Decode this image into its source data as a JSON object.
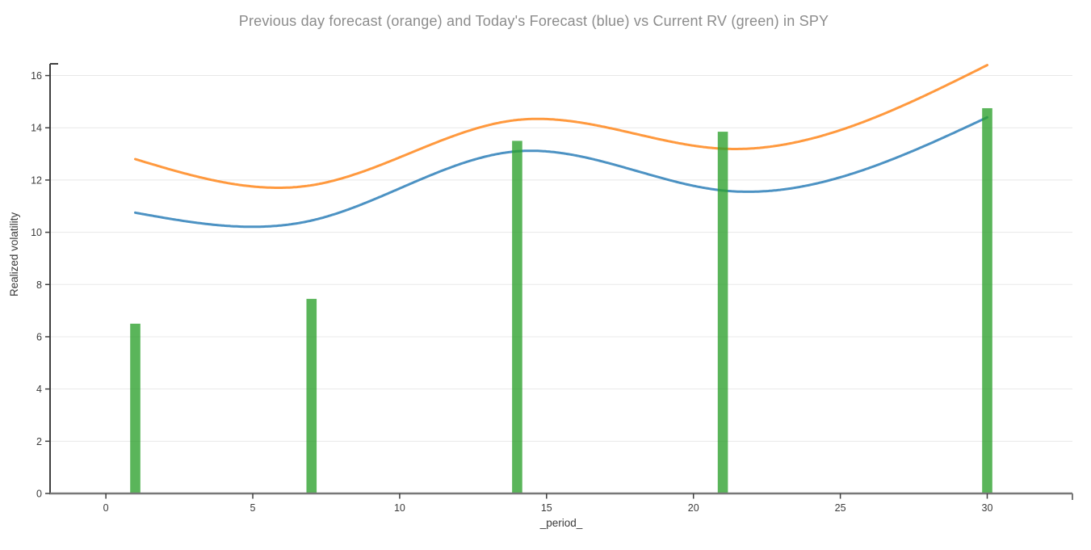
{
  "chart_data": {
    "type": "mixed",
    "title": "Previous day forecast (orange) and Today's Forecast (blue) vs Current RV (green) in SPY",
    "xlabel": "_period_",
    "ylabel": "Realized volatility",
    "x": [
      1,
      7,
      14,
      21,
      30
    ],
    "series": [
      {
        "name": "Previous day forecast",
        "type": "line",
        "color": "#ff7f0e",
        "opacity": 0.8,
        "values": [
          12.8,
          11.8,
          14.3,
          13.2,
          16.4
        ]
      },
      {
        "name": "Today's Forecast",
        "type": "line",
        "color": "#1f77b4",
        "opacity": 0.8,
        "values": [
          10.75,
          10.45,
          13.1,
          11.6,
          14.4
        ]
      },
      {
        "name": "Current RV",
        "type": "bar",
        "color": "#2ca02c",
        "opacity": 0.78,
        "values": [
          6.5,
          7.45,
          13.5,
          13.85,
          14.75
        ]
      }
    ],
    "xlim": [
      -1.9,
      32.9
    ],
    "ylim": [
      0,
      16.45
    ],
    "x_ticks": [
      0,
      5,
      10,
      15,
      20,
      25,
      30
    ],
    "y_ticks": [
      0,
      2,
      4,
      6,
      8,
      10,
      12,
      14,
      16
    ],
    "grid": "horizontal",
    "legend": "none",
    "colors": {
      "grid": "#e8e8e8",
      "y_axis": "#3f3f3f",
      "x_axis": "#787878",
      "tick_label": "#3b3b3b",
      "title": "#8c8c8c"
    }
  }
}
